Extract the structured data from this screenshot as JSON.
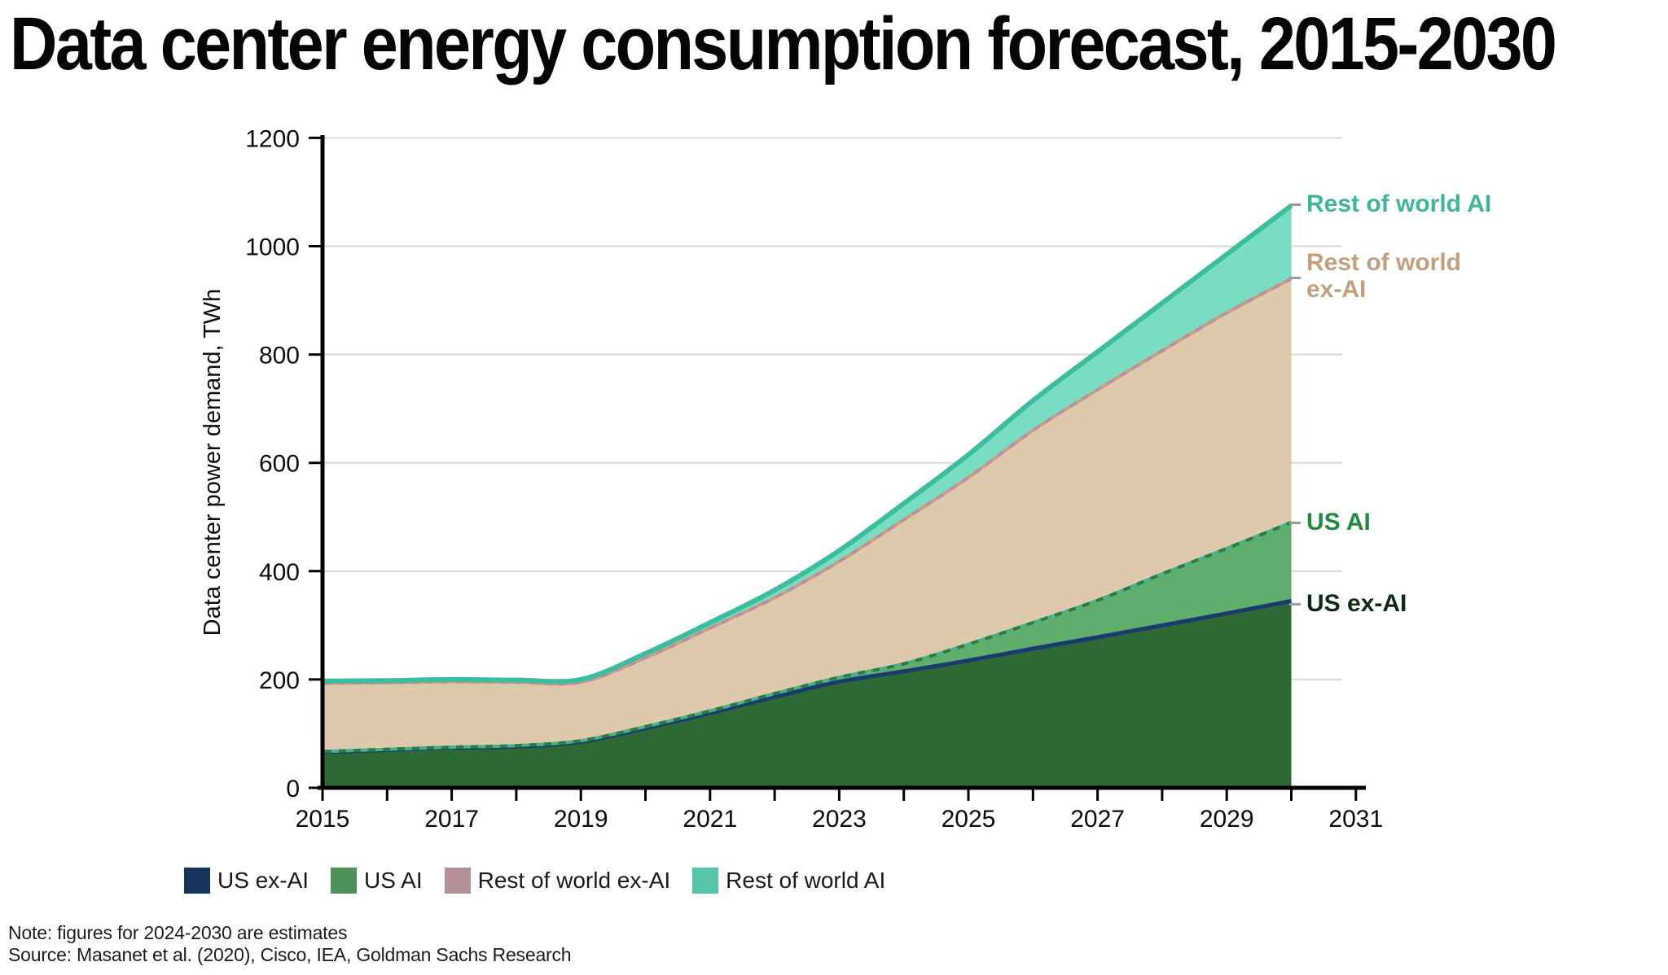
{
  "title": "Data center energy consumption forecast, 2015-2030",
  "y_axis": {
    "title": "Data center power demand, TWh",
    "ticks": [
      0,
      200,
      400,
      600,
      800,
      1000,
      1200
    ]
  },
  "x_axis": {
    "tick_years": [
      2015,
      2016,
      2017,
      2018,
      2019,
      2020,
      2021,
      2022,
      2023,
      2024,
      2025,
      2026,
      2027,
      2028,
      2029,
      2030,
      2031
    ],
    "label_years": [
      2015,
      2017,
      2019,
      2021,
      2023,
      2025,
      2027,
      2029,
      2031
    ]
  },
  "legend": {
    "items": [
      {
        "label": "US ex-AI",
        "color": "#143459"
      },
      {
        "label": "US AI",
        "color": "#4d9158"
      },
      {
        "label": "Rest of world ex-AI",
        "color": "#b38f96"
      },
      {
        "label": "Rest of world AI",
        "color": "#57c4ac"
      }
    ]
  },
  "annotations": {
    "row_ai": {
      "label": "Rest of world AI",
      "color": "#3cb79c"
    },
    "row_ex_ai": {
      "label": "Rest of world ex-AI",
      "color": "#c49f7e"
    },
    "us_ai": {
      "label": "US AI",
      "color": "#1d8a3d"
    },
    "us_ex_ai": {
      "label": "US ex-AI",
      "color": "#0d2c16"
    }
  },
  "note": "Note: figures for 2024-2030 are estimates",
  "source": "Source: Masanet et al. (2020), Cisco, IEA, Goldman Sachs Research",
  "colors": {
    "grid": "#d9d9d9",
    "axis": "#000000",
    "background": "#ffffff"
  },
  "chart_data": {
    "type": "area",
    "stacked": true,
    "title": "Data center energy consumption forecast, 2015-2030",
    "ylabel": "Data center power demand, TWh",
    "xlabel": "",
    "ylim": [
      0,
      1200
    ],
    "xlim": [
      2015,
      2031
    ],
    "grid": true,
    "legend_position": "bottom",
    "x": [
      2015,
      2016,
      2017,
      2018,
      2019,
      2020,
      2021,
      2022,
      2023,
      2024,
      2025,
      2026,
      2027,
      2028,
      2029,
      2030
    ],
    "series": [
      {
        "name": "US ex-AI",
        "fill": "#2d6935",
        "edge": "#1b3a6e",
        "edge_width": 5,
        "values": [
          66,
          70,
          74,
          76,
          85,
          110,
          138,
          168,
          196,
          215,
          235,
          257,
          278,
          300,
          322,
          345
        ]
      },
      {
        "name": "US AI",
        "fill": "#5fae6e",
        "edge": "#49b18c",
        "edge_dash": "#2e7a3f",
        "edge_width": 4,
        "values": [
          1,
          1,
          1,
          2,
          2,
          3,
          4,
          6,
          8,
          14,
          30,
          48,
          68,
          95,
          120,
          145
        ]
      },
      {
        "name": "Rest of world ex-AI",
        "fill": "#ddc9ac",
        "edge": "#c5a283",
        "edge_dash": "#bf8da0",
        "edge_width": 4,
        "values": [
          126,
          123,
          121,
          117,
          108,
          127,
          153,
          177,
          214,
          266,
          308,
          355,
          389,
          412,
          435,
          450
        ]
      },
      {
        "name": "Rest of world AI",
        "fill": "#79ddc4",
        "edge": "#3bbd9f",
        "edge_width": 6,
        "values": [
          4,
          4,
          4,
          4,
          5,
          8,
          10,
          14,
          20,
          30,
          42,
          55,
          70,
          88,
          108,
          135
        ]
      }
    ],
    "totals_by_year": [
      197,
      198,
      200,
      199,
      200,
      248,
      305,
      365,
      438,
      525,
      615,
      715,
      805,
      895,
      985,
      1075
    ]
  }
}
